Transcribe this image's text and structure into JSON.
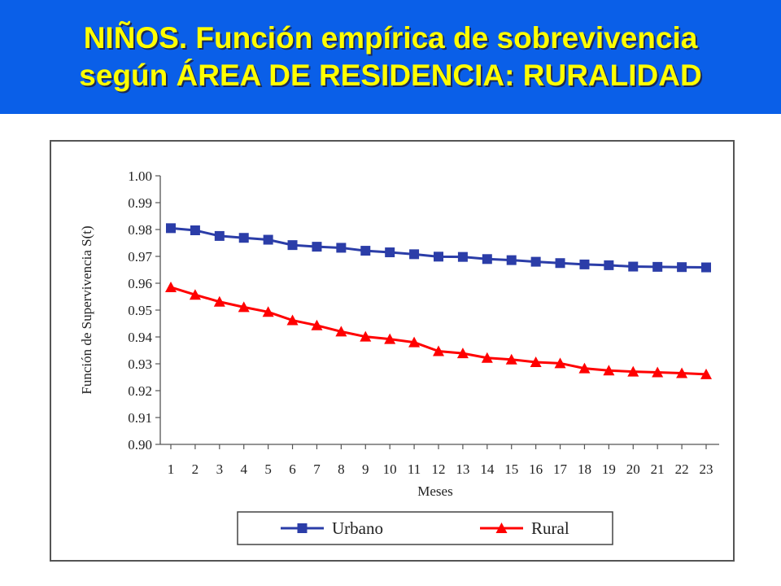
{
  "header": {
    "line1": "NIÑOS. Función empírica de sobrevivencia",
    "line2": "según ÁREA DE RESIDENCIA: RURALIDAD"
  },
  "colors": {
    "header_bg": "#0a5fe8",
    "title_text": "#ffff00",
    "urbano": "#2b3da8",
    "rural": "#ff0000"
  },
  "chart_data": {
    "type": "line",
    "title": "",
    "xlabel": "Meses",
    "ylabel": "Función de Supervivencia S(t)",
    "x": [
      1,
      2,
      3,
      4,
      5,
      6,
      7,
      8,
      9,
      10,
      11,
      12,
      13,
      14,
      15,
      16,
      17,
      18,
      19,
      20,
      21,
      22,
      23
    ],
    "ylim": [
      0.9,
      1.0
    ],
    "yticks": [
      "0.90",
      "0.91",
      "0.92",
      "0.93",
      "0.94",
      "0.95",
      "0.96",
      "0.97",
      "0.98",
      "0.99",
      "1.00"
    ],
    "grid": false,
    "legend_position": "bottom",
    "series": [
      {
        "name": "Urbano",
        "marker": "square",
        "values": [
          0.9805,
          0.9797,
          0.9776,
          0.9769,
          0.9762,
          0.9742,
          0.9736,
          0.9732,
          0.9721,
          0.9715,
          0.9708,
          0.9699,
          0.9698,
          0.969,
          0.9686,
          0.968,
          0.9675,
          0.967,
          0.9667,
          0.9662,
          0.9661,
          0.966,
          0.9659
        ]
      },
      {
        "name": "Rural",
        "marker": "triangle",
        "values": [
          0.9585,
          0.9557,
          0.9531,
          0.9511,
          0.9493,
          0.9462,
          0.9443,
          0.942,
          0.9401,
          0.9392,
          0.938,
          0.9347,
          0.9339,
          0.9322,
          0.9316,
          0.9306,
          0.9302,
          0.9283,
          0.9275,
          0.9271,
          0.9268,
          0.9265,
          0.9261
        ]
      }
    ]
  }
}
